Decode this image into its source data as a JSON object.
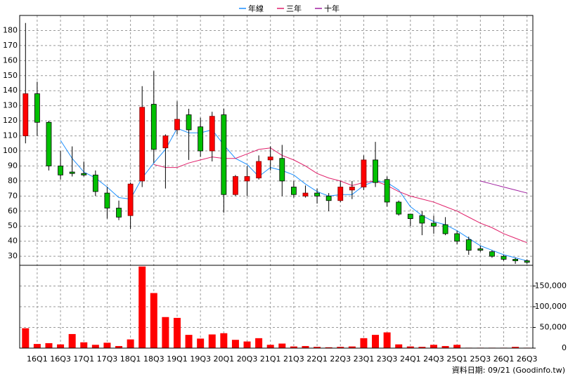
{
  "chart_data": {
    "type": "candlestick",
    "legend_position": "top",
    "source": "資料日期: 09/21 (Goodinfo.tw)",
    "categories": [
      null,
      "16Q1",
      null,
      "16Q3",
      null,
      "17Q1",
      null,
      "17Q3",
      null,
      "18Q1",
      null,
      "18Q3",
      null,
      "19Q1",
      null,
      "19Q3",
      null,
      "20Q1",
      null,
      "20Q3",
      null,
      "21Q1",
      null,
      "21Q3",
      null,
      "22Q1",
      null,
      "22Q3",
      null,
      "23Q1",
      null,
      "23Q3",
      null,
      "24Q1",
      null,
      "24Q3",
      null,
      "25Q1",
      null,
      "25Q3",
      null,
      "26Q1",
      null,
      "26Q3"
    ],
    "open": [
      110,
      138,
      119,
      90,
      86,
      85,
      84,
      72,
      62,
      57,
      80,
      131,
      102,
      114,
      124,
      116,
      100,
      124,
      71,
      80,
      82,
      94,
      95,
      76,
      70,
      72,
      70,
      67,
      74,
      76,
      94,
      81,
      66,
      58,
      57,
      52,
      51,
      45,
      41,
      35,
      33,
      30,
      28,
      27
    ],
    "high": [
      185,
      146,
      120,
      100,
      103,
      93,
      87,
      76,
      67,
      79,
      143,
      153,
      111,
      133,
      128,
      122,
      126,
      128,
      84,
      90,
      97,
      103,
      104,
      80,
      77,
      75,
      72,
      80,
      80,
      97,
      106,
      83,
      67,
      58,
      60,
      57,
      56,
      47,
      43,
      37,
      34,
      31,
      29,
      28
    ],
    "low": [
      105,
      110,
      87,
      81,
      83,
      83,
      70,
      55,
      54,
      48,
      76,
      92,
      75,
      111,
      94,
      96,
      93,
      59,
      70,
      70,
      81,
      87,
      70,
      69,
      69,
      65,
      60,
      66,
      68,
      74,
      76,
      63,
      57,
      50,
      44,
      45,
      44,
      38,
      31,
      33,
      29,
      27,
      25,
      25
    ],
    "close": [
      138,
      119,
      90,
      84,
      85,
      84,
      73,
      62,
      56,
      78,
      129,
      101,
      110,
      121,
      114,
      100,
      123,
      71,
      83,
      83,
      93,
      96,
      80,
      71,
      72,
      70,
      67,
      76,
      76,
      94,
      79,
      66,
      58,
      55,
      52,
      50,
      45,
      40,
      34,
      34,
      30,
      28,
      27,
      26
    ],
    "up_color": "#ff0000",
    "down_color": "#00c000",
    "series": [
      {
        "name": "年線",
        "color": "#1e90ff",
        "values": [
          null,
          null,
          null,
          107,
          95,
          86,
          82,
          76,
          69,
          68,
          82,
          92,
          101,
          115,
          112,
          112,
          114,
          104,
          95,
          91,
          83,
          89,
          87,
          84,
          78,
          73,
          70,
          71,
          71,
          77,
          80,
          79,
          74,
          63,
          57,
          53,
          51,
          47,
          42,
          37,
          34,
          31,
          29,
          27
        ]
      },
      {
        "name": "三年",
        "color": "#e0206a",
        "values": [
          null,
          null,
          null,
          null,
          null,
          null,
          null,
          null,
          null,
          null,
          null,
          91,
          89,
          89,
          92,
          94,
          96,
          95,
          95,
          98,
          101,
          102,
          97,
          94,
          90,
          85,
          82,
          80,
          77,
          79,
          80,
          77,
          73,
          70,
          68,
          66,
          63,
          60,
          56,
          52,
          49,
          45,
          42,
          39
        ]
      },
      {
        "name": "十年",
        "color": "#a020a0",
        "values": [
          null,
          null,
          null,
          null,
          null,
          null,
          null,
          null,
          null,
          null,
          null,
          null,
          null,
          null,
          null,
          null,
          null,
          null,
          null,
          null,
          null,
          null,
          null,
          null,
          null,
          null,
          null,
          null,
          null,
          null,
          null,
          null,
          null,
          null,
          null,
          null,
          null,
          null,
          null,
          80,
          78,
          76,
          74,
          72
        ]
      }
    ],
    "ylim": [
      24,
      190
    ],
    "yticks": [
      30,
      40,
      50,
      60,
      70,
      80,
      90,
      100,
      110,
      120,
      130,
      140,
      150,
      160,
      170,
      180
    ],
    "grid": true,
    "volume": {
      "color": "#ff0000",
      "values": [
        48000,
        10000,
        12000,
        9000,
        34000,
        14000,
        8000,
        13000,
        5000,
        21000,
        197000,
        133000,
        75000,
        73000,
        32000,
        23000,
        33000,
        36000,
        20000,
        16000,
        24000,
        8000,
        11000,
        4000,
        5000,
        3000,
        2000,
        3000,
        4000,
        24000,
        32000,
        38000,
        9000,
        4000,
        3000,
        8000,
        5000,
        8000,
        1000,
        1000,
        1000,
        1000,
        3000,
        1000
      ],
      "ylim": [
        0,
        200000
      ],
      "yticks": [
        {
          "value": 0,
          "label": "0"
        },
        {
          "value": 50000,
          "label": "50,000"
        },
        {
          "value": 100000,
          "label": "100,000"
        },
        {
          "value": 150000,
          "label": "150,000"
        }
      ]
    }
  }
}
